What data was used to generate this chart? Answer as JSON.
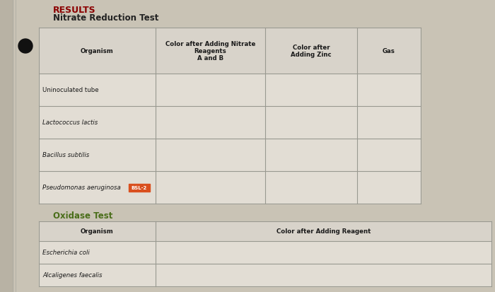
{
  "title_results": "RESULTS",
  "title_nitrate": "Nitrate Reduction Test",
  "title_oxidase": "Oxidase Test",
  "page_bg": "#c9c3b5",
  "table_bg": "#e2ddd4",
  "header_bg": "#d8d3ca",
  "grid_color": "#999990",
  "nitrate_headers": [
    "Organism",
    "Color after Adding Nitrate\nReagents\nA and B",
    "Color after\nAdding Zinc",
    "Gas"
  ],
  "nitrate_rows": [
    [
      "Uninoculated tube",
      "",
      "",
      ""
    ],
    [
      "Lactococcus lactis",
      "",
      "",
      ""
    ],
    [
      "Bacillus subtilis",
      "",
      "",
      ""
    ],
    [
      "Pseudomonas aeruginosa",
      "BSL-2",
      "",
      ""
    ]
  ],
  "oxidase_headers": [
    "Organism",
    "Color after Adding Reagent"
  ],
  "oxidase_rows": [
    [
      "Escherichia coli",
      ""
    ],
    [
      "Alcaligenes faecalis",
      ""
    ]
  ],
  "results_color": "#8B0000",
  "nitrate_title_color": "#222222",
  "oxidase_title_color": "#4a6e1a",
  "bsl2_bg": "#d94f1e",
  "bsl2_fg": "#ffffff",
  "bullet_color": "#111111",
  "left_margin_color": "#b8b2a4",
  "nitrate_italic_rows": [
    1,
    2,
    3
  ],
  "oxidase_italic_rows": [
    0,
    1
  ]
}
